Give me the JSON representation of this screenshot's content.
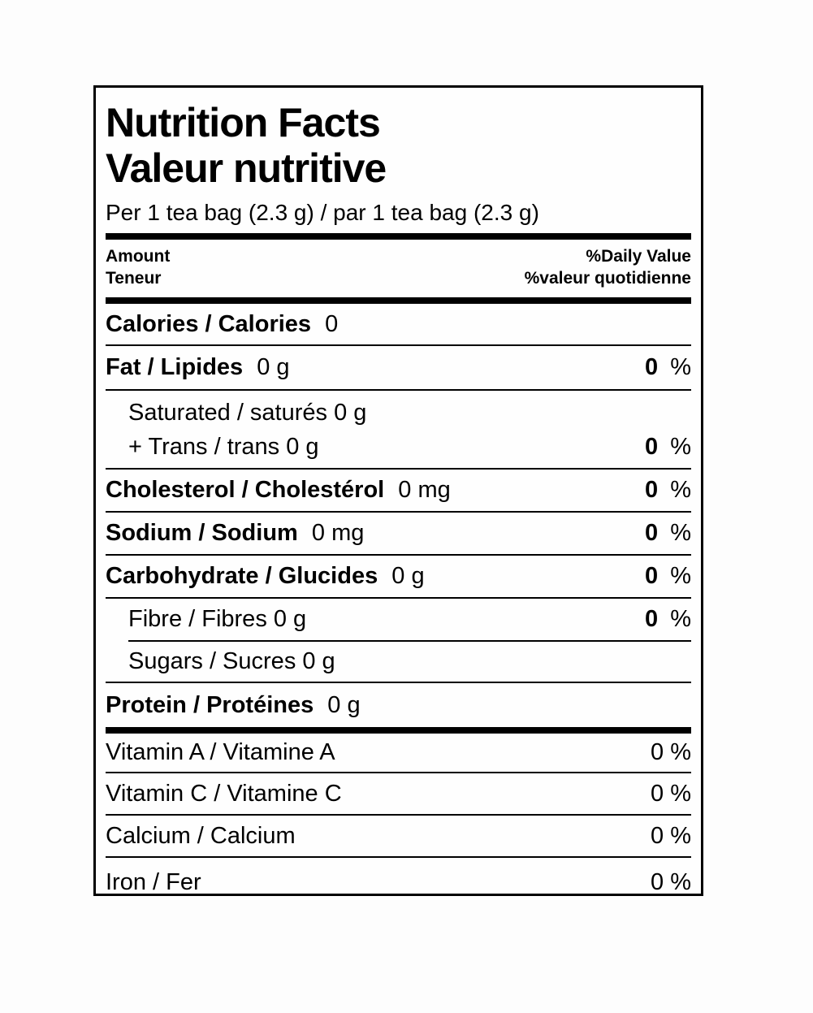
{
  "colors": {
    "text": "#000000",
    "rules": "#000000",
    "background": "#fefefe"
  },
  "label": {
    "title_en": "Nutrition Facts",
    "title_fr": "Valeur nutritive",
    "serving": "Per 1 tea bag (2.3 g) / par 1 tea bag (2.3 g)",
    "percent_sign": "%",
    "header": {
      "amount_en": "Amount",
      "amount_fr": "Teneur",
      "daily_value_en": "%Daily Value",
      "daily_value_fr": "%valeur quotidienne"
    },
    "rows": {
      "calories": {
        "name": "Calories / Calories",
        "amount": "0"
      },
      "fat": {
        "name": "Fat / Lipides",
        "amount": "0 g",
        "dv": "0"
      },
      "saturated": {
        "name": "Saturated / saturés 0 g"
      },
      "trans": {
        "name": "+ Trans / trans 0 g",
        "dv": "0"
      },
      "cholesterol": {
        "name": "Cholesterol / Cholestérol",
        "amount": "0 mg",
        "dv": "0"
      },
      "sodium": {
        "name": "Sodium / Sodium",
        "amount": "0 mg",
        "dv": "0"
      },
      "carbohydrate": {
        "name": "Carbohydrate / Glucides",
        "amount": "0 g",
        "dv": "0"
      },
      "fibre": {
        "name": "Fibre / Fibres 0 g",
        "dv": "0"
      },
      "sugars": {
        "name": "Sugars / Sucres 0 g"
      },
      "protein": {
        "name": "Protein / Protéines",
        "amount": "0 g"
      },
      "vitamin_a": {
        "name": "Vitamin A / Vitamine A",
        "dv": "0 %"
      },
      "vitamin_c": {
        "name": "Vitamin C / Vitamine C",
        "dv": "0 %"
      },
      "calcium": {
        "name": "Calcium / Calcium",
        "dv": "0 %"
      },
      "iron": {
        "name": "Iron / Fer",
        "dv": "0 %"
      }
    }
  }
}
